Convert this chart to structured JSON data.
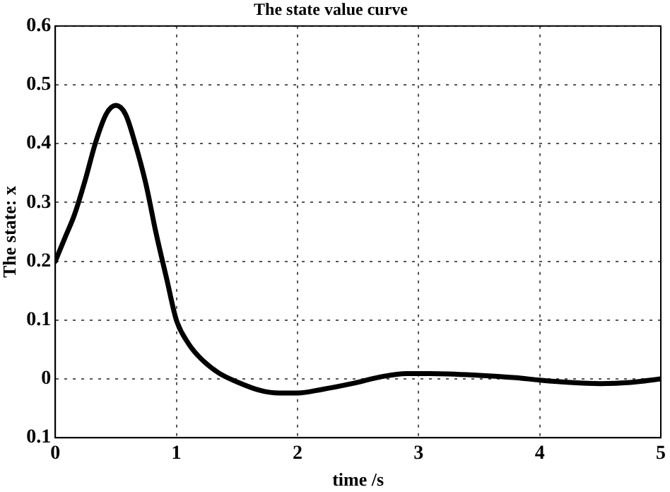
{
  "chart_data": {
    "type": "line",
    "title": "The state value curve",
    "xlabel": "time /s",
    "ylabel": "The state: x",
    "series": [
      {
        "color": "#000000",
        "x": [
          0,
          0.08,
          0.16,
          0.25,
          0.33,
          0.42,
          0.5,
          0.58,
          0.66,
          0.75,
          0.83,
          0.92,
          1.0,
          1.1,
          1.2,
          1.35,
          1.5,
          1.7,
          1.85,
          2.0,
          2.2,
          2.45,
          2.7,
          2.9,
          3.1,
          3.5,
          3.8,
          4.0,
          4.25,
          4.5,
          4.75,
          5.0
        ],
        "values": [
          0.2,
          0.24,
          0.28,
          0.34,
          0.4,
          0.45,
          0.465,
          0.45,
          0.4,
          0.33,
          0.25,
          0.17,
          0.1,
          0.06,
          0.035,
          0.01,
          -0.005,
          -0.02,
          -0.024,
          -0.024,
          -0.018,
          -0.008,
          0.004,
          0.009,
          0.009,
          0.006,
          0.002,
          -0.002,
          -0.006,
          -0.008,
          -0.006,
          0
        ]
      }
    ],
    "xlim": [
      0,
      5
    ],
    "xticks": [
      0,
      1,
      2,
      3,
      4,
      5
    ],
    "ylim": [
      -0.1,
      0.6
    ],
    "yticks": [
      {
        "value": -0.1,
        "label": "0.1"
      },
      0,
      0.1,
      0.2,
      0.3,
      0.4,
      0.5,
      0.6
    ],
    "grid": true,
    "legend": false,
    "marker": "none",
    "line_style": "solid"
  }
}
